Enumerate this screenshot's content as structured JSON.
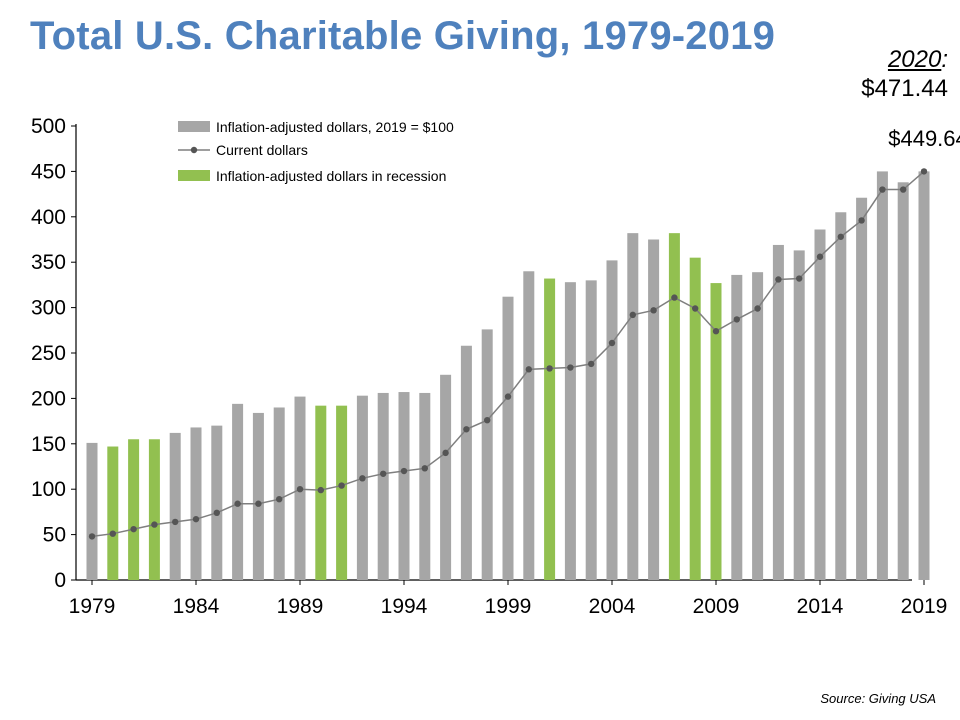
{
  "title": "Total U.S. Charitable Giving, 1979-2019",
  "note": {
    "year": "2020",
    "colon": ":",
    "value": "$471.44"
  },
  "source": "Source: Giving USA",
  "colors": {
    "title": "#4f81bd",
    "bar": "#a6a6a6",
    "recession": "#92c050",
    "line": "#7f7f7f",
    "dot": "#555555"
  },
  "chart_data": {
    "type": "bar",
    "title": "Total U.S. Charitable Giving, 1979-2019",
    "xlabel": "",
    "ylabel": "",
    "ylim": [
      0,
      500
    ],
    "yticks": [
      0,
      50,
      100,
      150,
      200,
      250,
      300,
      350,
      400,
      450,
      500
    ],
    "xtick_labels": [
      "1979",
      "1984",
      "1989",
      "1994",
      "1999",
      "2004",
      "2009",
      "2014",
      "2019"
    ],
    "categories": [
      1979,
      1980,
      1981,
      1982,
      1983,
      1984,
      1985,
      1986,
      1987,
      1988,
      1989,
      1990,
      1991,
      1992,
      1993,
      1994,
      1995,
      1996,
      1997,
      1998,
      1999,
      2000,
      2001,
      2002,
      2003,
      2004,
      2005,
      2006,
      2007,
      2008,
      2009,
      2010,
      2011,
      2012,
      2013,
      2014,
      2015,
      2016,
      2017,
      2018,
      2019
    ],
    "recession_years": [
      1980,
      1981,
      1982,
      1990,
      1991,
      2001,
      2007,
      2008,
      2009
    ],
    "legend_position": "top-left",
    "series": [
      {
        "name": "Inflation-adjusted dollars, 2019 = $100",
        "kind": "bar",
        "values": [
          151,
          147,
          155,
          155,
          162,
          168,
          170,
          194,
          184,
          190,
          202,
          192,
          192,
          203,
          206,
          207,
          206,
          226,
          258,
          276,
          312,
          340,
          332,
          328,
          330,
          352,
          382,
          375,
          382,
          355,
          327,
          336,
          339,
          369,
          363,
          386,
          405,
          421,
          450,
          438,
          450
        ]
      },
      {
        "name": "Current dollars",
        "kind": "line",
        "values": [
          48,
          51,
          56,
          61,
          64,
          67,
          74,
          84,
          84,
          89,
          100,
          99,
          104,
          112,
          117,
          120,
          123,
          140,
          166,
          176,
          202,
          232,
          233,
          234,
          238,
          261,
          292,
          297,
          311,
          299,
          274,
          287,
          299,
          331,
          332,
          356,
          378,
          396,
          430,
          430,
          450
        ]
      }
    ],
    "annotations": [
      {
        "text": "$449.64",
        "year": 2019
      }
    ]
  }
}
